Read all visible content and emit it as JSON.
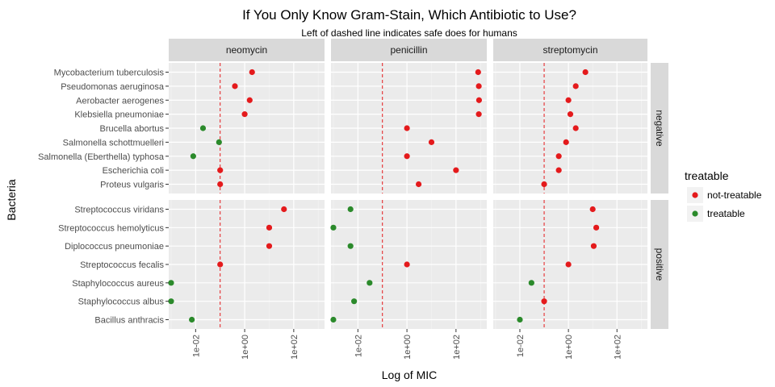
{
  "chart_data": {
    "type": "scatter",
    "title": "If You Only Know Gram-Stain, Which Antibiotic to Use?",
    "subtitle": "Left of dashed line indicates safe does for humans",
    "xlabel": "Log of MIC",
    "ylabel": "Bacteria",
    "x_scale": "log10",
    "x_ticks": [
      {
        "value": 0.01,
        "label": "1e-02"
      },
      {
        "value": 1,
        "label": "1e+00"
      },
      {
        "value": 100,
        "label": "1e+02"
      }
    ],
    "xlim": [
      0.0008,
      1800
    ],
    "threshold_mic": 0.1,
    "facet_columns": [
      "neomycin",
      "penicillin",
      "streptomycin"
    ],
    "facet_rows": [
      "negative",
      "positive"
    ],
    "rows": {
      "negative": [
        "Mycobacterium tuberculosis",
        "Pseudomonas aeruginosa",
        "Aerobacter aerogenes",
        "Klebsiella pneumoniae",
        "Brucella abortus",
        "Salmonella schottmuelleri",
        "Salmonella (Eberthella) typhosa",
        "Escherichia coli",
        "Proteus vulgaris"
      ],
      "positive": [
        "Streptococcus viridans",
        "Streptococcus hemolyticus",
        "Diplococcus pneumoniae",
        "Streptococcus fecalis",
        "Staphylococcus aureus",
        "Staphylococcus albus",
        "Bacillus anthracis"
      ]
    },
    "legend": {
      "title": "treatable",
      "position": "right",
      "items": [
        {
          "label": "not-treatable",
          "color": "#E41A1C"
        },
        {
          "label": "treatable",
          "color": "#2B8A2B"
        }
      ]
    },
    "points": [
      {
        "bacteria": "Mycobacterium tuberculosis",
        "gram": "negative",
        "antibiotic": "neomycin",
        "mic": 2,
        "treatable": "not-treatable"
      },
      {
        "bacteria": "Mycobacterium tuberculosis",
        "gram": "negative",
        "antibiotic": "penicillin",
        "mic": 800,
        "treatable": "not-treatable"
      },
      {
        "bacteria": "Mycobacterium tuberculosis",
        "gram": "negative",
        "antibiotic": "streptomycin",
        "mic": 5,
        "treatable": "not-treatable"
      },
      {
        "bacteria": "Pseudomonas aeruginosa",
        "gram": "negative",
        "antibiotic": "neomycin",
        "mic": 0.4,
        "treatable": "not-treatable"
      },
      {
        "bacteria": "Pseudomonas aeruginosa",
        "gram": "negative",
        "antibiotic": "penicillin",
        "mic": 850,
        "treatable": "not-treatable"
      },
      {
        "bacteria": "Pseudomonas aeruginosa",
        "gram": "negative",
        "antibiotic": "streptomycin",
        "mic": 2,
        "treatable": "not-treatable"
      },
      {
        "bacteria": "Aerobacter aerogenes",
        "gram": "negative",
        "antibiotic": "neomycin",
        "mic": 1.6,
        "treatable": "not-treatable"
      },
      {
        "bacteria": "Aerobacter aerogenes",
        "gram": "negative",
        "antibiotic": "penicillin",
        "mic": 870,
        "treatable": "not-treatable"
      },
      {
        "bacteria": "Aerobacter aerogenes",
        "gram": "negative",
        "antibiotic": "streptomycin",
        "mic": 1,
        "treatable": "not-treatable"
      },
      {
        "bacteria": "Klebsiella pneumoniae",
        "gram": "negative",
        "antibiotic": "neomycin",
        "mic": 1,
        "treatable": "not-treatable"
      },
      {
        "bacteria": "Klebsiella pneumoniae",
        "gram": "negative",
        "antibiotic": "penicillin",
        "mic": 850,
        "treatable": "not-treatable"
      },
      {
        "bacteria": "Klebsiella pneumoniae",
        "gram": "negative",
        "antibiotic": "streptomycin",
        "mic": 1.2,
        "treatable": "not-treatable"
      },
      {
        "bacteria": "Brucella abortus",
        "gram": "negative",
        "antibiotic": "neomycin",
        "mic": 0.02,
        "treatable": "treatable"
      },
      {
        "bacteria": "Brucella abortus",
        "gram": "negative",
        "antibiotic": "penicillin",
        "mic": 1,
        "treatable": "not-treatable"
      },
      {
        "bacteria": "Brucella abortus",
        "gram": "negative",
        "antibiotic": "streptomycin",
        "mic": 2,
        "treatable": "not-treatable"
      },
      {
        "bacteria": "Salmonella schottmuelleri",
        "gram": "negative",
        "antibiotic": "neomycin",
        "mic": 0.09,
        "treatable": "treatable"
      },
      {
        "bacteria": "Salmonella schottmuelleri",
        "gram": "negative",
        "antibiotic": "penicillin",
        "mic": 10,
        "treatable": "not-treatable"
      },
      {
        "bacteria": "Salmonella schottmuelleri",
        "gram": "negative",
        "antibiotic": "streptomycin",
        "mic": 0.8,
        "treatable": "not-treatable"
      },
      {
        "bacteria": "Salmonella (Eberthella) typhosa",
        "gram": "negative",
        "antibiotic": "neomycin",
        "mic": 0.008,
        "treatable": "treatable"
      },
      {
        "bacteria": "Salmonella (Eberthella) typhosa",
        "gram": "negative",
        "antibiotic": "penicillin",
        "mic": 1,
        "treatable": "not-treatable"
      },
      {
        "bacteria": "Salmonella (Eberthella) typhosa",
        "gram": "negative",
        "antibiotic": "streptomycin",
        "mic": 0.4,
        "treatable": "not-treatable"
      },
      {
        "bacteria": "Escherichia coli",
        "gram": "negative",
        "antibiotic": "neomycin",
        "mic": 0.1,
        "treatable": "not-treatable"
      },
      {
        "bacteria": "Escherichia coli",
        "gram": "negative",
        "antibiotic": "penicillin",
        "mic": 100,
        "treatable": "not-treatable"
      },
      {
        "bacteria": "Escherichia coli",
        "gram": "negative",
        "antibiotic": "streptomycin",
        "mic": 0.4,
        "treatable": "not-treatable"
      },
      {
        "bacteria": "Proteus vulgaris",
        "gram": "negative",
        "antibiotic": "neomycin",
        "mic": 0.1,
        "treatable": "not-treatable"
      },
      {
        "bacteria": "Proteus vulgaris",
        "gram": "negative",
        "antibiotic": "penicillin",
        "mic": 3,
        "treatable": "not-treatable"
      },
      {
        "bacteria": "Proteus vulgaris",
        "gram": "negative",
        "antibiotic": "streptomycin",
        "mic": 0.1,
        "treatable": "not-treatable"
      },
      {
        "bacteria": "Streptococcus viridans",
        "gram": "positive",
        "antibiotic": "neomycin",
        "mic": 40,
        "treatable": "not-treatable"
      },
      {
        "bacteria": "Streptococcus viridans",
        "gram": "positive",
        "antibiotic": "penicillin",
        "mic": 0.005,
        "treatable": "treatable"
      },
      {
        "bacteria": "Streptococcus viridans",
        "gram": "positive",
        "antibiotic": "streptomycin",
        "mic": 10,
        "treatable": "not-treatable"
      },
      {
        "bacteria": "Streptococcus hemolyticus",
        "gram": "positive",
        "antibiotic": "neomycin",
        "mic": 10,
        "treatable": "not-treatable"
      },
      {
        "bacteria": "Streptococcus hemolyticus",
        "gram": "positive",
        "antibiotic": "penicillin",
        "mic": 0.001,
        "treatable": "treatable"
      },
      {
        "bacteria": "Streptococcus hemolyticus",
        "gram": "positive",
        "antibiotic": "streptomycin",
        "mic": 14,
        "treatable": "not-treatable"
      },
      {
        "bacteria": "Diplococcus pneumoniae",
        "gram": "positive",
        "antibiotic": "neomycin",
        "mic": 10,
        "treatable": "not-treatable"
      },
      {
        "bacteria": "Diplococcus pneumoniae",
        "gram": "positive",
        "antibiotic": "penicillin",
        "mic": 0.005,
        "treatable": "treatable"
      },
      {
        "bacteria": "Diplococcus pneumoniae",
        "gram": "positive",
        "antibiotic": "streptomycin",
        "mic": 11,
        "treatable": "not-treatable"
      },
      {
        "bacteria": "Streptococcus fecalis",
        "gram": "positive",
        "antibiotic": "neomycin",
        "mic": 0.1,
        "treatable": "not-treatable"
      },
      {
        "bacteria": "Streptococcus fecalis",
        "gram": "positive",
        "antibiotic": "penicillin",
        "mic": 1,
        "treatable": "not-treatable"
      },
      {
        "bacteria": "Streptococcus fecalis",
        "gram": "positive",
        "antibiotic": "streptomycin",
        "mic": 1,
        "treatable": "not-treatable"
      },
      {
        "bacteria": "Staphylococcus aureus",
        "gram": "positive",
        "antibiotic": "neomycin",
        "mic": 0.001,
        "treatable": "treatable"
      },
      {
        "bacteria": "Staphylococcus aureus",
        "gram": "positive",
        "antibiotic": "penicillin",
        "mic": 0.03,
        "treatable": "treatable"
      },
      {
        "bacteria": "Staphylococcus aureus",
        "gram": "positive",
        "antibiotic": "streptomycin",
        "mic": 0.03,
        "treatable": "treatable"
      },
      {
        "bacteria": "Staphylococcus albus",
        "gram": "positive",
        "antibiotic": "neomycin",
        "mic": 0.001,
        "treatable": "treatable"
      },
      {
        "bacteria": "Staphylococcus albus",
        "gram": "positive",
        "antibiotic": "penicillin",
        "mic": 0.007,
        "treatable": "treatable"
      },
      {
        "bacteria": "Staphylococcus albus",
        "gram": "positive",
        "antibiotic": "streptomycin",
        "mic": 0.1,
        "treatable": "not-treatable"
      },
      {
        "bacteria": "Bacillus anthracis",
        "gram": "positive",
        "antibiotic": "neomycin",
        "mic": 0.007,
        "treatable": "treatable"
      },
      {
        "bacteria": "Bacillus anthracis",
        "gram": "positive",
        "antibiotic": "penicillin",
        "mic": 0.001,
        "treatable": "treatable"
      },
      {
        "bacteria": "Bacillus anthracis",
        "gram": "positive",
        "antibiotic": "streptomycin",
        "mic": 0.01,
        "treatable": "treatable"
      }
    ]
  }
}
